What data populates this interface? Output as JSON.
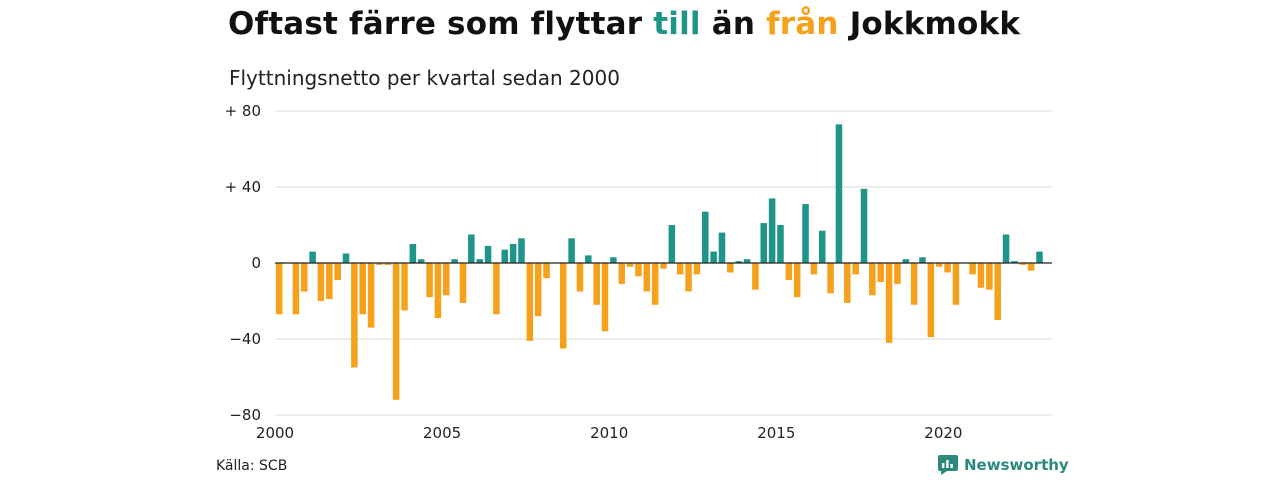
{
  "title": {
    "part1": "Oftast färre som flyttar ",
    "word_till": "till",
    "part2": " än ",
    "word_fran": "från",
    "part3": " Jokkmokk"
  },
  "subtitle": "Flyttningsnetto per kvartal sedan 2000",
  "source": "Källa: SCB",
  "brand": "Newsworthy",
  "colors": {
    "positive": "#1f9488",
    "negative": "#f5a11c",
    "grid": "#d9d9d9",
    "zero_line": "#222222",
    "brand": "#2a8a7e"
  },
  "chart_data": {
    "type": "bar",
    "x_start_year": 2000,
    "periods_per_year": 4,
    "ylim": [
      -80,
      80
    ],
    "yticks": [
      80,
      40,
      0,
      -40,
      -80
    ],
    "ytick_labels": [
      "+ 80",
      "+ 40",
      "0",
      "−40",
      "−80"
    ],
    "xticks": [
      2000,
      2005,
      2010,
      2015,
      2020
    ],
    "xtick_labels": [
      "2000",
      "2005",
      "2010",
      "2015",
      "2020"
    ],
    "categories": [
      "2000Q1",
      "2000Q2",
      "2000Q3",
      "2000Q4",
      "2001Q1",
      "2001Q2",
      "2001Q3",
      "2001Q4",
      "2002Q1",
      "2002Q2",
      "2002Q3",
      "2002Q4",
      "2003Q1",
      "2003Q2",
      "2003Q3",
      "2003Q4",
      "2004Q1",
      "2004Q2",
      "2004Q3",
      "2004Q4",
      "2005Q1",
      "2005Q2",
      "2005Q3",
      "2005Q4",
      "2006Q1",
      "2006Q2",
      "2006Q3",
      "2006Q4",
      "2007Q1",
      "2007Q2",
      "2007Q3",
      "2007Q4",
      "2008Q1",
      "2008Q2",
      "2008Q3",
      "2008Q4",
      "2009Q1",
      "2009Q2",
      "2009Q3",
      "2009Q4",
      "2010Q1",
      "2010Q2",
      "2010Q3",
      "2010Q4",
      "2011Q1",
      "2011Q2",
      "2011Q3",
      "2011Q4",
      "2012Q1",
      "2012Q2",
      "2012Q3",
      "2012Q4",
      "2013Q1",
      "2013Q2",
      "2013Q3",
      "2013Q4",
      "2014Q1",
      "2014Q2",
      "2014Q3",
      "2014Q4",
      "2015Q1",
      "2015Q2",
      "2015Q3",
      "2015Q4",
      "2016Q1",
      "2016Q2",
      "2016Q3",
      "2016Q4",
      "2017Q1",
      "2017Q2",
      "2017Q3",
      "2017Q4",
      "2018Q1",
      "2018Q2",
      "2018Q3",
      "2018Q4",
      "2019Q1",
      "2019Q2",
      "2019Q3",
      "2019Q4",
      "2020Q1",
      "2020Q2",
      "2020Q3",
      "2020Q4",
      "2021Q1",
      "2021Q2",
      "2021Q3",
      "2021Q4",
      "2022Q1",
      "2022Q2",
      "2022Q3",
      "2022Q4",
      "2023Q1"
    ],
    "values": [
      -27,
      0,
      -27,
      -15,
      6,
      -20,
      -19,
      -9,
      5,
      -55,
      -27,
      -34,
      -1,
      -1,
      -72,
      -25,
      10,
      2,
      -18,
      -29,
      -17,
      2,
      -21,
      15,
      2,
      9,
      -27,
      7,
      10,
      13,
      -41,
      -28,
      -8,
      0,
      -45,
      13,
      -15,
      4,
      -22,
      -36,
      3,
      -11,
      -2,
      -7,
      -15,
      -22,
      -3,
      20,
      -6,
      -15,
      -6,
      27,
      6,
      16,
      -5,
      1,
      2,
      -14,
      21,
      34,
      20,
      -9,
      -18,
      31,
      -6,
      17,
      -16,
      73,
      -21,
      -6,
      39,
      -17,
      -10,
      -42,
      -11,
      2,
      -22,
      3,
      -39,
      -2,
      -5,
      -22,
      0,
      -6,
      -13,
      -14,
      -30,
      15,
      1,
      -1,
      -4,
      6,
      0
    ]
  }
}
